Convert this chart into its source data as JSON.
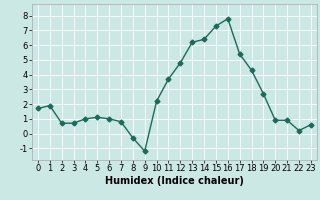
{
  "x": [
    0,
    1,
    2,
    3,
    4,
    5,
    6,
    7,
    8,
    9,
    10,
    11,
    12,
    13,
    14,
    15,
    16,
    17,
    18,
    19,
    20,
    21,
    22,
    23
  ],
  "y": [
    1.7,
    1.9,
    0.7,
    0.7,
    1.0,
    1.1,
    1.0,
    0.8,
    -0.3,
    -1.2,
    2.2,
    3.7,
    4.8,
    6.2,
    6.4,
    7.3,
    7.8,
    5.4,
    4.3,
    2.7,
    0.9,
    0.9,
    0.2,
    0.6
  ],
  "line_color": "#1a6b5a",
  "marker": "D",
  "marker_size": 2.5,
  "line_width": 1.0,
  "bg_color": "#cce8e4",
  "grid_color": "#ffffff",
  "grid_color_minor": "#e8f5f2",
  "xlabel": "Humidex (Indice chaleur)",
  "xlabel_fontsize": 7,
  "tick_fontsize": 6,
  "ylim": [
    -1.8,
    8.8
  ],
  "xlim": [
    -0.5,
    23.5
  ],
  "yticks": [
    -1,
    0,
    1,
    2,
    3,
    4,
    5,
    6,
    7,
    8
  ],
  "xticks": [
    0,
    1,
    2,
    3,
    4,
    5,
    6,
    7,
    8,
    9,
    10,
    11,
    12,
    13,
    14,
    15,
    16,
    17,
    18,
    19,
    20,
    21,
    22,
    23
  ]
}
